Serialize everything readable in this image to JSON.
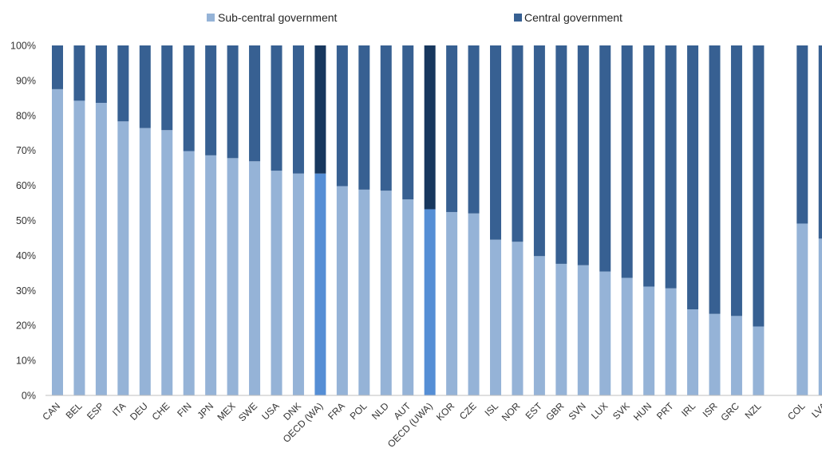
{
  "chart_data": {
    "type": "bar",
    "stacked": "percent",
    "categories": [
      "CAN",
      "BEL",
      "ESP",
      "ITA",
      "DEU",
      "CHE",
      "FIN",
      "JPN",
      "MEX",
      "SWE",
      "USA",
      "DNK",
      "OECD (WA)",
      "FRA",
      "POL",
      "NLD",
      "AUT",
      "OECD (UWA)",
      "KOR",
      "CZE",
      "ISL",
      "NOR",
      "EST",
      "GBR",
      "SVN",
      "LUX",
      "SVK",
      "HUN",
      "PRT",
      "IRL",
      "ISR",
      "GRC",
      "NZL",
      "",
      "COL",
      "LVA"
    ],
    "series": [
      {
        "name": "Sub-central government",
        "values": [
          87.5,
          84.2,
          83.6,
          78.3,
          76.4,
          75.8,
          69.8,
          68.6,
          67.8,
          66.9,
          64.2,
          63.4,
          63.4,
          59.8,
          58.8,
          58.5,
          56.0,
          53.2,
          52.4,
          52.0,
          44.5,
          43.9,
          39.8,
          37.6,
          37.2,
          35.4,
          33.6,
          31.1,
          30.6,
          24.6,
          23.3,
          22.7,
          19.7,
          null,
          49.1,
          44.8
        ],
        "color": "#95b3d7",
        "highlight_color": "#558ed5"
      },
      {
        "name": "Central government",
        "values": [
          12.5,
          15.8,
          16.4,
          21.7,
          23.6,
          24.2,
          30.2,
          31.4,
          32.2,
          33.1,
          35.8,
          36.6,
          36.6,
          40.2,
          41.2,
          41.5,
          44.0,
          46.8,
          47.6,
          48.0,
          55.5,
          56.1,
          60.2,
          62.4,
          62.8,
          64.6,
          66.4,
          68.9,
          69.4,
          75.4,
          76.7,
          77.3,
          80.3,
          null,
          50.9,
          55.2
        ],
        "color": "#376092",
        "highlight_color": "#17375e"
      }
    ],
    "highlighted_categories": [
      "OECD (WA)",
      "OECD (UWA)"
    ],
    "yticks": [
      "0%",
      "10%",
      "20%",
      "30%",
      "40%",
      "50%",
      "60%",
      "70%",
      "80%",
      "90%",
      "100%"
    ],
    "ylim": [
      0,
      100
    ],
    "legend_position": "top",
    "grid": false
  }
}
